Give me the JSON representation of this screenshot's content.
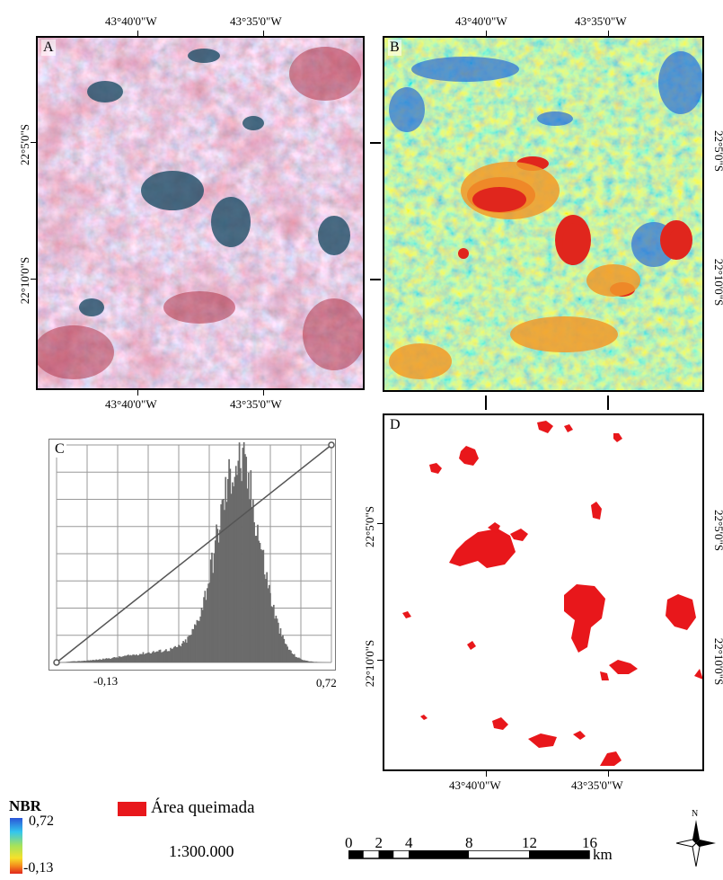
{
  "panels": {
    "a": {
      "label": "A"
    },
    "b": {
      "label": "B"
    },
    "c": {
      "label": "C"
    },
    "d": {
      "label": "D"
    }
  },
  "coords": {
    "lon_1": "43°40'0\"W",
    "lon_2": "43°35'0\"W",
    "lat_1": "22°5'0\"S",
    "lat_2": "22°10'0\"S"
  },
  "histogram": {
    "min_label": "-0,13",
    "max_label": "0,72"
  },
  "legend": {
    "nbr_title": "NBR",
    "nbr_max": "0,72",
    "nbr_min": "-0,13",
    "burned_label": "Área queimada",
    "scale_text": "1:300.000",
    "scale_ticks": [
      "0",
      "2",
      "4",
      "8",
      "12",
      "16"
    ],
    "scale_unit": "km",
    "north": "N"
  },
  "colors": {
    "burned": "#e8171b",
    "nbr_high": "#2b55d8",
    "nbr_low": "#e0261d"
  }
}
